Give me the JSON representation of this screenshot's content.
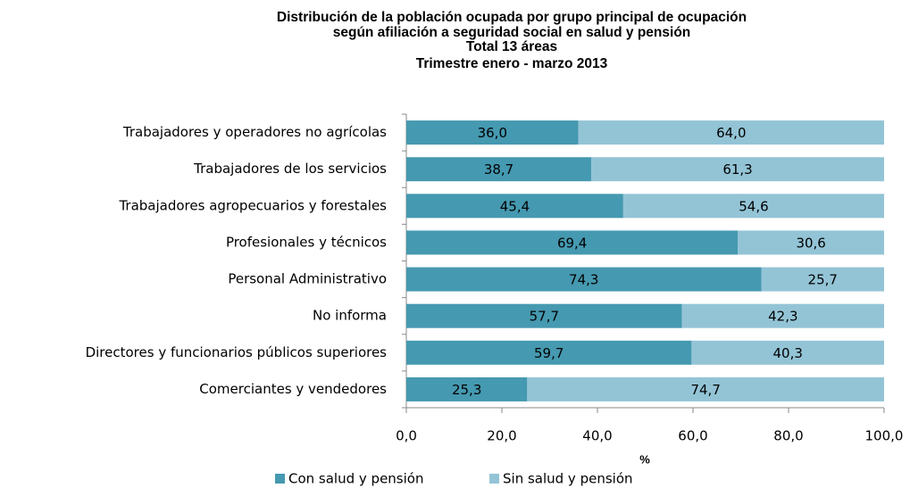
{
  "chart_data": {
    "type": "stacked_barh",
    "title": [
      "Distribución de la población ocupada por grupo principal de ocupación",
      "según afiliación a seguridad social en salud y pensión",
      "Total 13 áreas",
      "Trimestre enero - marzo 2013"
    ],
    "x_label": "%",
    "categories": [
      "Trabajadores y operadores no agrícolas",
      "Trabajadores de los servicios",
      "Trabajadores agropecuarios y forestales",
      "Profesionales y técnicos",
      "Personal Administrativo",
      "No informa",
      "Directores y funcionarios públicos superiores",
      "Comerciantes y vendedores"
    ],
    "series": [
      {
        "name": "Con salud y pensión",
        "color": "#4599b0",
        "values": [
          36.0,
          38.7,
          45.4,
          69.4,
          74.3,
          57.7,
          59.7,
          25.3
        ],
        "value_labels": [
          "36,0",
          "38,7",
          "45,4",
          "69,4",
          "74,3",
          "57,7",
          "59,7",
          "25,3"
        ]
      },
      {
        "name": "Sin salud y pensión",
        "color": "#93c4d6",
        "values": [
          64.0,
          61.3,
          54.6,
          30.6,
          25.7,
          42.3,
          40.3,
          74.7
        ],
        "value_labels": [
          "64,0",
          "61,3",
          "54,6",
          "30,6",
          "25,7",
          "42,3",
          "40,3",
          "74,7"
        ]
      }
    ],
    "xlim": [
      0,
      100
    ],
    "xticks": [
      {
        "value": 0,
        "label": "0,0"
      },
      {
        "value": 20,
        "label": "20,0"
      },
      {
        "value": 40,
        "label": "40,0"
      },
      {
        "value": 60,
        "label": "60,0"
      },
      {
        "value": 80,
        "label": "80,0"
      },
      {
        "value": 100,
        "label": "100,0"
      }
    ],
    "legend": "bottom"
  }
}
